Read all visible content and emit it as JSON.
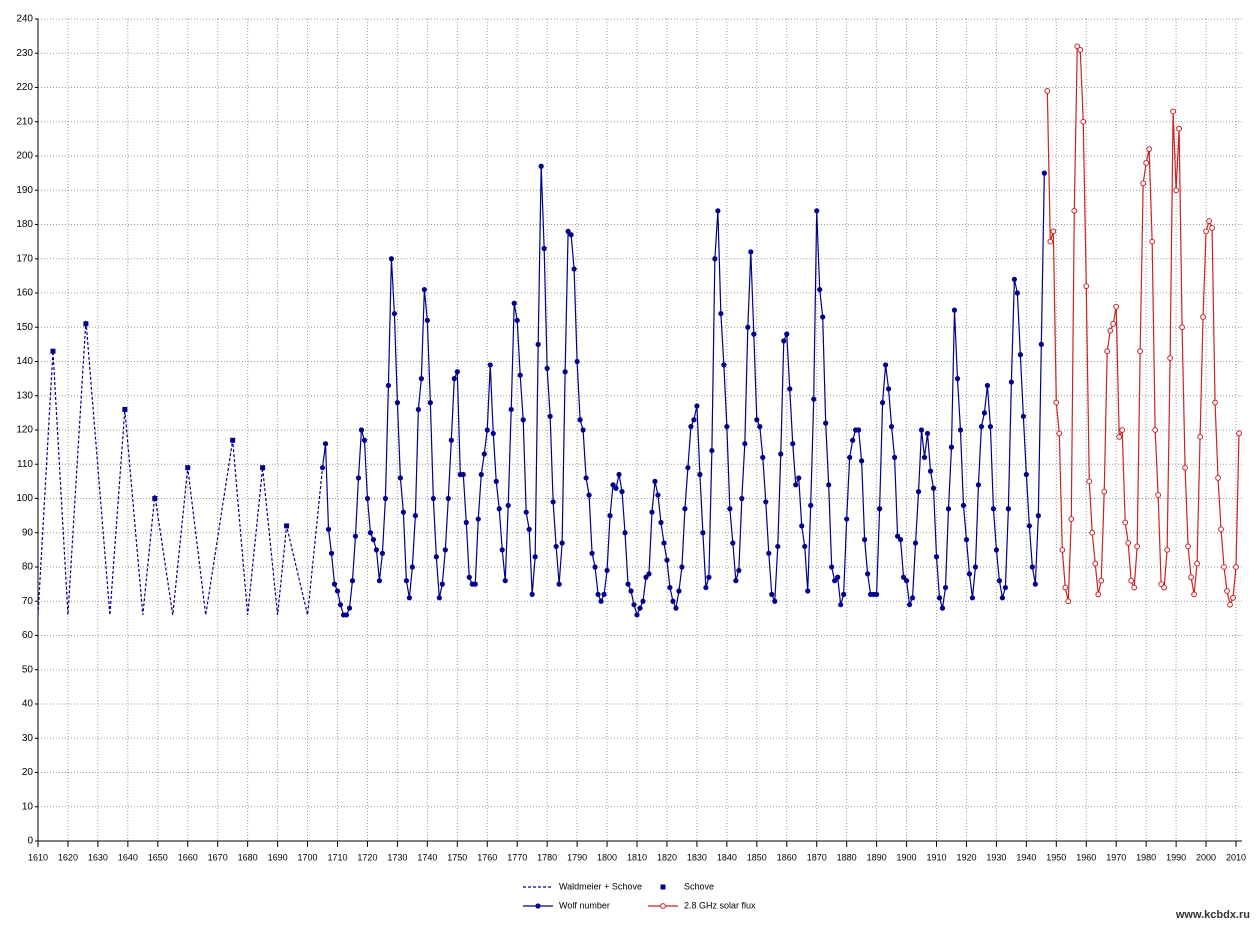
{
  "chart_data": {
    "type": "line",
    "xlim": [
      1610,
      2012
    ],
    "ylim": [
      0,
      240
    ],
    "xticks": [
      1610,
      1620,
      1630,
      1640,
      1650,
      1660,
      1670,
      1680,
      1690,
      1700,
      1710,
      1720,
      1730,
      1740,
      1750,
      1760,
      1770,
      1780,
      1790,
      1800,
      1810,
      1820,
      1830,
      1840,
      1850,
      1860,
      1870,
      1880,
      1890,
      1900,
      1910,
      1920,
      1930,
      1940,
      1950,
      1960,
      1970,
      1980,
      1990,
      2000,
      2010
    ],
    "yticks": [
      0,
      10,
      20,
      30,
      40,
      50,
      60,
      70,
      80,
      90,
      100,
      110,
      120,
      130,
      140,
      150,
      160,
      170,
      180,
      190,
      200,
      210,
      220,
      230,
      240
    ],
    "grid": true,
    "watermark": "www.kcbdx.ru",
    "series": [
      {
        "name": "Waldmeier + Schove",
        "color": "#00008b",
        "line": true,
        "dash": true,
        "marker": "none",
        "x": [
          1610,
          1615,
          1620,
          1626,
          1634,
          1639,
          1645,
          1649,
          1655,
          1660,
          1666,
          1675,
          1680,
          1685,
          1690,
          1693,
          1700,
          1705
        ],
        "values": [
          66,
          143,
          66,
          152,
          66,
          126,
          66,
          101,
          66,
          109,
          66,
          117,
          66,
          109,
          66,
          92,
          66,
          109
        ]
      },
      {
        "name": "Schove",
        "color": "#00008b",
        "line": false,
        "dash": false,
        "marker": "square",
        "x": [
          1615,
          1626,
          1639,
          1649,
          1660,
          1675,
          1685,
          1693
        ],
        "values": [
          143,
          151,
          126,
          100,
          109,
          117,
          109,
          92
        ]
      },
      {
        "name": "Wolf number",
        "color": "#00008b",
        "line": true,
        "dash": false,
        "marker": "circle",
        "x": [
          1705,
          1706,
          1707,
          1708,
          1709,
          1710,
          1711,
          1712,
          1713,
          1714,
          1715,
          1716,
          1717,
          1718,
          1719,
          1720,
          1721,
          1722,
          1723,
          1724,
          1725,
          1726,
          1727,
          1728,
          1729,
          1730,
          1731,
          1732,
          1733,
          1734,
          1735,
          1736,
          1737,
          1738,
          1739,
          1740,
          1741,
          1742,
          1743,
          1744,
          1745,
          1746,
          1747,
          1748,
          1749,
          1750,
          1751,
          1752,
          1753,
          1754,
          1755,
          1756,
          1757,
          1758,
          1759,
          1760,
          1761,
          1762,
          1763,
          1764,
          1765,
          1766,
          1767,
          1768,
          1769,
          1770,
          1771,
          1772,
          1773,
          1774,
          1775,
          1776,
          1777,
          1778,
          1779,
          1780,
          1781,
          1782,
          1783,
          1784,
          1785,
          1786,
          1787,
          1788,
          1789,
          1790,
          1791,
          1792,
          1793,
          1794,
          1795,
          1796,
          1797,
          1798,
          1799,
          1800,
          1801,
          1802,
          1803,
          1804,
          1805,
          1806,
          1807,
          1808,
          1809,
          1810,
          1811,
          1812,
          1813,
          1814,
          1815,
          1816,
          1817,
          1818,
          1819,
          1820,
          1821,
          1822,
          1823,
          1824,
          1825,
          1826,
          1827,
          1828,
          1829,
          1830,
          1831,
          1832,
          1833,
          1834,
          1835,
          1836,
          1837,
          1838,
          1839,
          1840,
          1841,
          1842,
          1843,
          1844,
          1845,
          1846,
          1847,
          1848,
          1849,
          1850,
          1851,
          1852,
          1853,
          1854,
          1855,
          1856,
          1857,
          1858,
          1859,
          1860,
          1861,
          1862,
          1863,
          1864,
          1865,
          1866,
          1867,
          1868,
          1869,
          1870,
          1871,
          1872,
          1873,
          1874,
          1875,
          1876,
          1877,
          1878,
          1879,
          1880,
          1881,
          1882,
          1883,
          1884,
          1885,
          1886,
          1887,
          1888,
          1889,
          1890,
          1891,
          1892,
          1893,
          1894,
          1895,
          1896,
          1897,
          1898,
          1899,
          1900,
          1901,
          1902,
          1903,
          1904,
          1905,
          1906,
          1907,
          1908,
          1909,
          1910,
          1911,
          1912,
          1913,
          1914,
          1915,
          1916,
          1917,
          1918,
          1919,
          1920,
          1921,
          1922,
          1923,
          1924,
          1925,
          1926,
          1927,
          1928,
          1929,
          1930,
          1931,
          1932,
          1933,
          1934,
          1935,
          1936,
          1937,
          1938,
          1939,
          1940,
          1941,
          1942,
          1943,
          1944,
          1945,
          1946
        ],
        "values": [
          109,
          116,
          91,
          84,
          75,
          73,
          69,
          66,
          66,
          68,
          76,
          89,
          106,
          120,
          117,
          100,
          90,
          88,
          85,
          76,
          84,
          100,
          133,
          170,
          154,
          128,
          106,
          96,
          76,
          71,
          80,
          95,
          126,
          135,
          161,
          152,
          128,
          100,
          83,
          71,
          75,
          85,
          100,
          117,
          135,
          137,
          107,
          107,
          93,
          77,
          75,
          75,
          94,
          107,
          113,
          120,
          139,
          119,
          105,
          97,
          85,
          76,
          98,
          126,
          157,
          152,
          136,
          123,
          96,
          91,
          72,
          83,
          145,
          197,
          173,
          138,
          124,
          99,
          86,
          75,
          87,
          137,
          178,
          177,
          167,
          140,
          123,
          120,
          106,
          101,
          84,
          80,
          72,
          70,
          72,
          79,
          95,
          104,
          103,
          107,
          102,
          90,
          75,
          73,
          69,
          66,
          68,
          70,
          77,
          78,
          96,
          105,
          101,
          93,
          87,
          82,
          74,
          70,
          68,
          73,
          80,
          97,
          109,
          121,
          123,
          127,
          107,
          90,
          74,
          77,
          114,
          170,
          184,
          154,
          139,
          121,
          97,
          87,
          76,
          79,
          100,
          116,
          150,
          172,
          148,
          123,
          121,
          112,
          99,
          84,
          72,
          70,
          86,
          113,
          146,
          148,
          132,
          116,
          104,
          106,
          92,
          86,
          73,
          98,
          129,
          184,
          161,
          153,
          122,
          104,
          80,
          76,
          77,
          69,
          72,
          94,
          112,
          117,
          120,
          120,
          111,
          88,
          78,
          72,
          72,
          72,
          97,
          128,
          139,
          132,
          121,
          112,
          89,
          88,
          77,
          76,
          69,
          71,
          87,
          102,
          120,
          112,
          119,
          108,
          103,
          83,
          71,
          68,
          74,
          97,
          115,
          155,
          135,
          120,
          98,
          88,
          78,
          71,
          80,
          104,
          121,
          125,
          133,
          121,
          97,
          85,
          76,
          71,
          74,
          97,
          134,
          164,
          160,
          142,
          124,
          107,
          92,
          80,
          75,
          95,
          145,
          195
        ]
      },
      {
        "name": "2.8 GHz solar flux",
        "color": "#cc2222",
        "line": true,
        "dash": false,
        "marker": "open-circle",
        "x": [
          1947,
          1948,
          1949,
          1950,
          1951,
          1952,
          1953,
          1954,
          1955,
          1956,
          1957,
          1958,
          1959,
          1960,
          1961,
          1962,
          1963,
          1964,
          1965,
          1966,
          1967,
          1968,
          1969,
          1970,
          1971,
          1972,
          1973,
          1974,
          1975,
          1976,
          1977,
          1978,
          1979,
          1980,
          1981,
          1982,
          1983,
          1984,
          1985,
          1986,
          1987,
          1988,
          1989,
          1990,
          1991,
          1992,
          1993,
          1994,
          1995,
          1996,
          1997,
          1998,
          1999,
          2000,
          2001,
          2002,
          2003,
          2004,
          2005,
          2006,
          2007,
          2008,
          2009,
          2010,
          2011
        ],
        "values": [
          219,
          175,
          178,
          128,
          119,
          85,
          74,
          70,
          94,
          184,
          232,
          231,
          210,
          162,
          105,
          90,
          81,
          72,
          76,
          102,
          143,
          149,
          151,
          156,
          118,
          120,
          93,
          87,
          76,
          74,
          86,
          143,
          192,
          198,
          202,
          175,
          120,
          101,
          75,
          74,
          85,
          141,
          213,
          190,
          208,
          150,
          109,
          86,
          77,
          72,
          81,
          118,
          153,
          178,
          181,
          179,
          128,
          106,
          91,
          80,
          73,
          69,
          71,
          80,
          119
        ]
      }
    ]
  }
}
